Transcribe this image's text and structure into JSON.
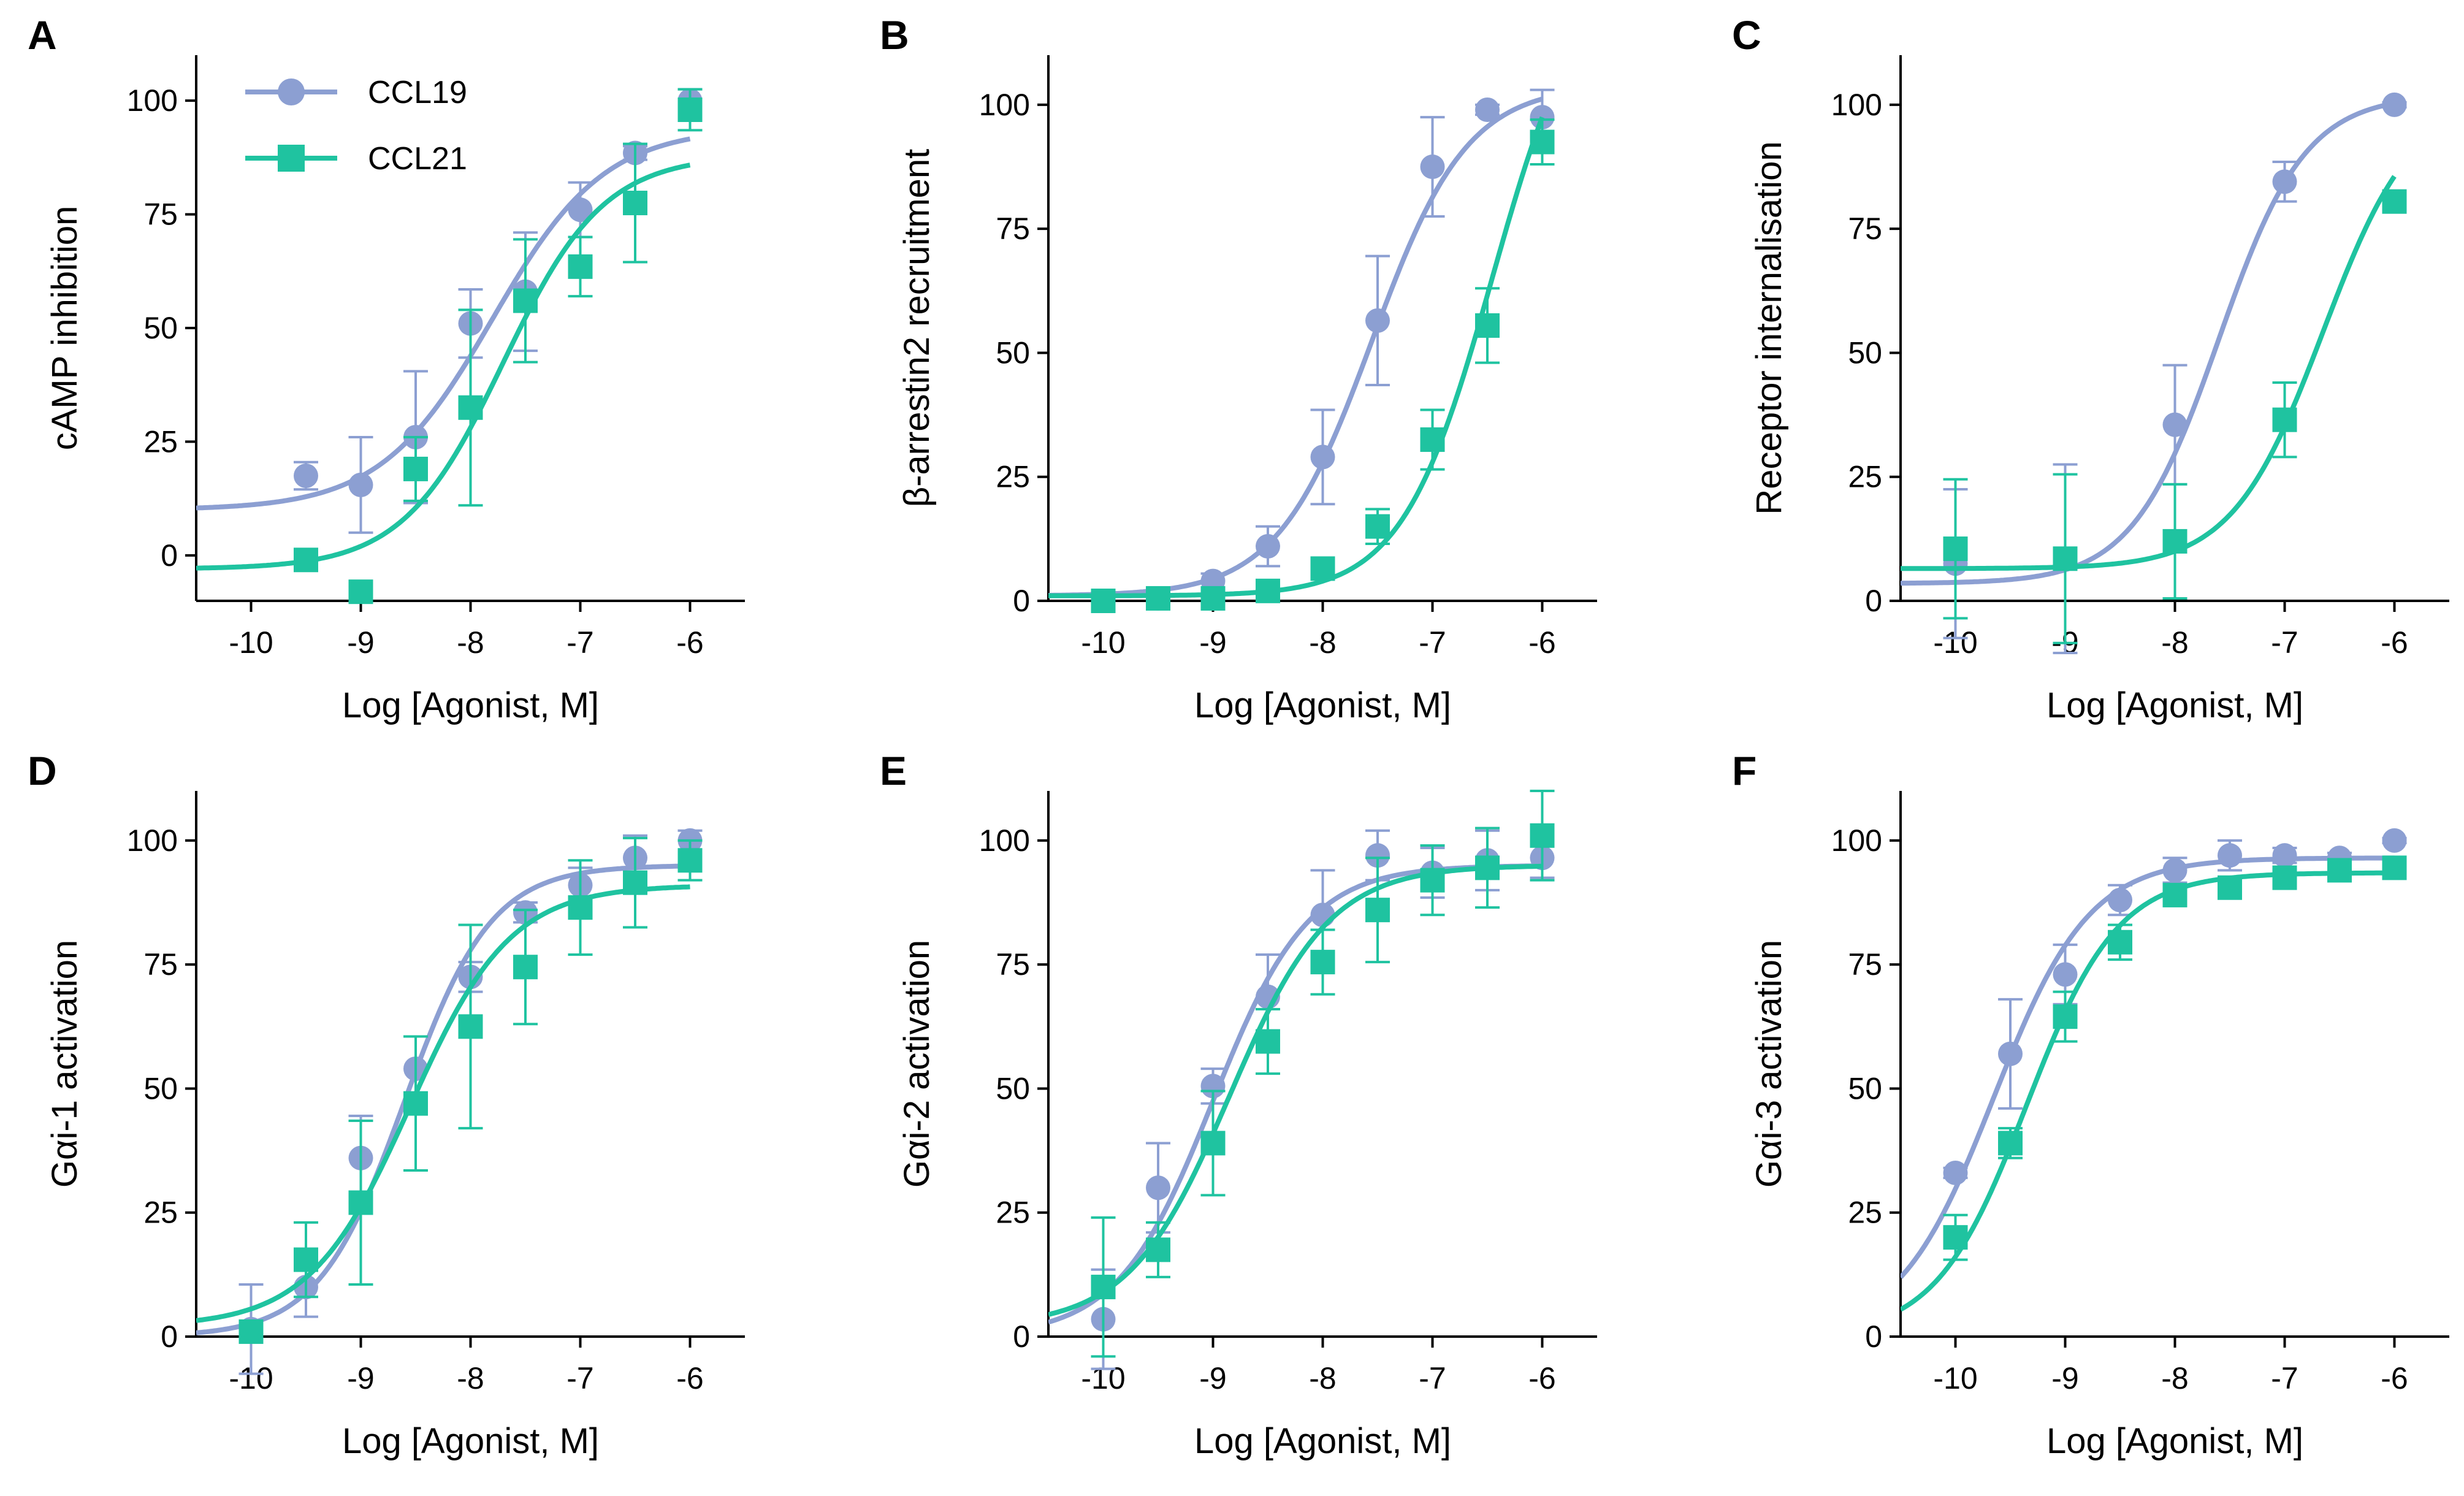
{
  "series_styles": {
    "CCL19": {
      "color": "#8c9fd2",
      "marker": "circle"
    },
    "CCL21": {
      "color": "#1fc3a0",
      "marker": "square"
    }
  },
  "legend": {
    "placement": "top-left of panel A",
    "entries": [
      "CCL19",
      "CCL21"
    ]
  },
  "chart_data": [
    {
      "panel": "A",
      "type": "scatter",
      "xlabel": "Log [Agonist, M]",
      "ylabel": "cAMP inhibition",
      "xlim": [
        -10.5,
        -5.5
      ],
      "ylim": [
        -10,
        110
      ],
      "xticks": [
        -10,
        -9,
        -8,
        -7,
        -6
      ],
      "yticks": [
        0,
        25,
        50,
        75,
        100
      ],
      "series": [
        {
          "name": "CCL19",
          "x": [
            -9.5,
            -9,
            -8.5,
            -8,
            -7.5,
            -7,
            -6.5,
            -6
          ],
          "y": [
            17.5,
            15.5,
            26,
            51,
            58,
            76,
            88.5,
            100
          ],
          "err": [
            3,
            10.5,
            14.5,
            7.5,
            13,
            6,
            1.5,
            2.5
          ],
          "fit": {
            "bottom": 10,
            "top": 94,
            "logec50": -7.8,
            "hill": 0.85
          }
        },
        {
          "name": "CCL21",
          "x": [
            -9.5,
            -9,
            -8.5,
            -8,
            -7.5,
            -7,
            -6.5,
            -6
          ],
          "y": [
            -1,
            -8,
            19,
            32.5,
            56,
            63.5,
            77.5,
            98
          ],
          "err": [
            1,
            1,
            7,
            21.5,
            13.5,
            6.5,
            13,
            4.5
          ],
          "fit": {
            "bottom": -3,
            "top": 88,
            "logec50": -7.7,
            "hill": 0.95
          }
        }
      ]
    },
    {
      "panel": "B",
      "type": "scatter",
      "xlabel": "Log [Agonist, M]",
      "ylabel": "β-arrestin2 recruitment",
      "xlim": [
        -10.5,
        -5.5
      ],
      "ylim": [
        0,
        110
      ],
      "xticks": [
        -10,
        -9,
        -8,
        -7,
        -6
      ],
      "yticks": [
        0,
        25,
        50,
        75,
        100
      ],
      "series": [
        {
          "name": "CCL19",
          "x": [
            -10,
            -9.5,
            -9,
            -8.5,
            -8,
            -7.5,
            -7,
            -6.5,
            -6
          ],
          "y": [
            0,
            0.5,
            4,
            11,
            29,
            56.5,
            87.5,
            99,
            97.5
          ],
          "err": [
            0.5,
            0.5,
            1.5,
            4,
            9.5,
            13,
            10,
            1,
            5.5
          ],
          "fit": {
            "bottom": 1,
            "top": 104,
            "logec50": -7.55,
            "hill": 1.0
          }
        },
        {
          "name": "CCL21",
          "x": [
            -10,
            -9.5,
            -9,
            -8.5,
            -8,
            -7.5,
            -7,
            -6.5,
            -6
          ],
          "y": [
            0,
            0.5,
            0.5,
            2,
            6.5,
            15,
            32.5,
            55.5,
            92.5
          ],
          "err": [
            0.5,
            0.5,
            0.5,
            1,
            1.5,
            3.5,
            6,
            7.5,
            4.5
          ],
          "fit": {
            "bottom": 1,
            "top": 130,
            "logec50": -6.45,
            "hill": 1.05
          }
        }
      ]
    },
    {
      "panel": "C",
      "type": "scatter",
      "xlabel": "Log [Agonist, M]",
      "ylabel": "Receptor internalisation",
      "xlim": [
        -10.5,
        -5.5
      ],
      "ylim": [
        0,
        110
      ],
      "xticks": [
        -10,
        -9,
        -8,
        -7,
        -6
      ],
      "yticks": [
        0,
        25,
        50,
        75,
        100
      ],
      "series": [
        {
          "name": "CCL19",
          "x": [
            -10,
            -9,
            -8,
            -7,
            -6
          ],
          "y": [
            7.5,
            8.5,
            35.5,
            84.5,
            100
          ],
          "err": [
            15,
            19,
            12,
            4,
            0.5
          ],
          "fit": {
            "bottom": 3.5,
            "top": 102,
            "logec50": -7.6,
            "hill": 1.1
          }
        },
        {
          "name": "CCL21",
          "x": [
            -10,
            -9,
            -8,
            -7,
            -6
          ],
          "y": [
            10.5,
            8.5,
            12,
            36.5,
            80.5
          ],
          "err": [
            14,
            17,
            11.5,
            7.5,
            0.5
          ],
          "fit": {
            "bottom": 6.5,
            "top": 102,
            "logec50": -6.65,
            "hill": 1.05
          }
        }
      ]
    },
    {
      "panel": "D",
      "type": "scatter",
      "xlabel": "Log [Agonist, M]",
      "ylabel": "Gαi-1 activation",
      "xlim": [
        -10.5,
        -5.5
      ],
      "ylim": [
        0,
        110
      ],
      "xticks": [
        -10,
        -9,
        -8,
        -7,
        -6
      ],
      "yticks": [
        0,
        25,
        50,
        75,
        100
      ],
      "series": [
        {
          "name": "CCL19",
          "x": [
            -10,
            -9.5,
            -9,
            -8.5,
            -8,
            -7.5,
            -7,
            -6.5,
            -6
          ],
          "y": [
            1.5,
            10,
            36,
            54,
            72.5,
            85.5,
            91,
            96.5,
            100
          ],
          "err": [
            9,
            6,
            8.5,
            6.5,
            3,
            2,
            3.5,
            4.5,
            2
          ],
          "fit": {
            "bottom": 0,
            "top": 95,
            "logec50": -8.6,
            "hill": 1.1
          }
        },
        {
          "name": "CCL21",
          "x": [
            -10,
            -9.5,
            -9,
            -8.5,
            -8,
            -7.5,
            -7,
            -6.5,
            -6
          ],
          "y": [
            1,
            15.5,
            27,
            47,
            62.5,
            74.5,
            86.5,
            91.5,
            96
          ],
          "err": [
            1,
            7.5,
            16.5,
            13.5,
            20.5,
            11.5,
            9.5,
            9,
            4
          ],
          "fit": {
            "bottom": 2,
            "top": 91,
            "logec50": -8.55,
            "hill": 0.95
          }
        }
      ]
    },
    {
      "panel": "E",
      "type": "scatter",
      "xlabel": "Log [Agonist, M]",
      "ylabel": "Gαi-2 activation",
      "xlim": [
        -10.5,
        -5.5
      ],
      "ylim": [
        0,
        110
      ],
      "xticks": [
        -10,
        -9,
        -8,
        -7,
        -6
      ],
      "yticks": [
        0,
        25,
        50,
        75,
        100
      ],
      "series": [
        {
          "name": "CCL19",
          "x": [
            -10,
            -9.5,
            -9,
            -8.5,
            -8,
            -7.5,
            -7,
            -6.5,
            -6
          ],
          "y": [
            3.5,
            30,
            50.5,
            68.5,
            85,
            97,
            93.5,
            96,
            96.5
          ],
          "err": [
            10,
            9,
            3.5,
            8.5,
            9,
            5,
            5,
            6,
            4
          ],
          "fit": {
            "bottom": 0,
            "top": 95,
            "logec50": -9.0,
            "hill": 1.0
          }
        },
        {
          "name": "CCL21",
          "x": [
            -10,
            -9.5,
            -9,
            -8.5,
            -8,
            -7.5,
            -7,
            -6.5,
            -6
          ],
          "y": [
            10,
            17.5,
            39,
            59.5,
            75.5,
            86,
            92,
            94.5,
            101
          ],
          "err": [
            14,
            5.5,
            10.5,
            6.5,
            6.5,
            10.5,
            7,
            8,
            9
          ],
          "fit": {
            "bottom": 2,
            "top": 95,
            "logec50": -8.85,
            "hill": 0.95
          }
        }
      ]
    },
    {
      "panel": "F",
      "type": "scatter",
      "xlabel": "Log [Agonist, M]",
      "ylabel": "Gαi-3 activation",
      "xlim": [
        -10.5,
        -5.5
      ],
      "ylim": [
        0,
        110
      ],
      "xticks": [
        -10,
        -9,
        -8,
        -7,
        -6
      ],
      "yticks": [
        0,
        25,
        50,
        75,
        100
      ],
      "series": [
        {
          "name": "CCL19",
          "x": [
            -10,
            -9.5,
            -9,
            -8.5,
            -8,
            -7.5,
            -7,
            -6.5,
            -6
          ],
          "y": [
            33,
            57,
            73,
            88,
            94,
            97,
            97,
            96.5,
            100
          ],
          "err": [
            1,
            11,
            6,
            3,
            2.5,
            3,
            1.5,
            1,
            0.5
          ],
          "fit": {
            "bottom": 0,
            "top": 96.5,
            "logec50": -9.65,
            "hill": 1.0
          }
        },
        {
          "name": "CCL21",
          "x": [
            -10,
            -9.5,
            -9,
            -8.5,
            -8,
            -7.5,
            -7,
            -6.5,
            -6
          ],
          "y": [
            20,
            39,
            64.5,
            79.5,
            89,
            90.5,
            92.5,
            94,
            94.5
          ],
          "err": [
            4.5,
            3,
            5,
            3.5,
            1.5,
            1.5,
            1.5,
            1,
            0.5
          ],
          "fit": {
            "bottom": 0,
            "top": 93.5,
            "logec50": -9.35,
            "hill": 1.05
          }
        }
      ]
    }
  ]
}
